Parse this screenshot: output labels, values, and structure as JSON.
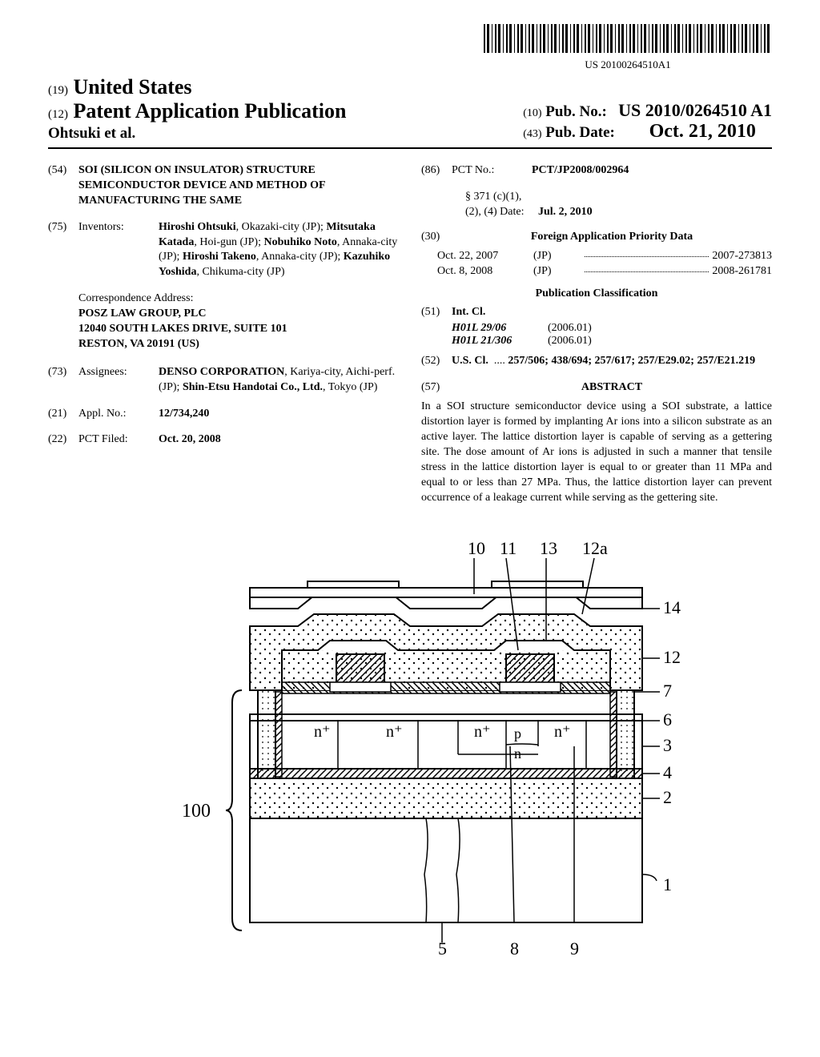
{
  "barcode_number": "US 20100264510A1",
  "header": {
    "country_code": "(19)",
    "country": "United States",
    "pub_type_code": "(12)",
    "pub_type": "Patent Application Publication",
    "authors": "Ohtsuki et al.",
    "pubno_code": "(10)",
    "pubno_label": "Pub. No.:",
    "pubno": "US 2010/0264510 A1",
    "pubdate_code": "(43)",
    "pubdate_label": "Pub. Date:",
    "pubdate": "Oct. 21, 2010"
  },
  "left": {
    "title_code": "(54)",
    "title": "SOI (SILICON ON INSULATOR) STRUCTURE SEMICONDUCTOR DEVICE AND METHOD OF MANUFACTURING THE SAME",
    "inventors_code": "(75)",
    "inventors_label": "Inventors:",
    "inventors_html": "<b>Hiroshi Ohtsuki</b>, Okazaki-city (JP); <b>Mitsutaka Katada</b>, Hoi-gun (JP); <b>Nobuhiko Noto</b>, Annaka-city (JP); <b>Hiroshi Takeno</b>, Annaka-city (JP); <b>Kazuhiko Yoshida</b>, Chikuma-city (JP)",
    "corr_label": "Correspondence Address:",
    "corr_lines": [
      "POSZ LAW GROUP, PLC",
      "12040 SOUTH LAKES DRIVE, SUITE 101",
      "RESTON, VA 20191 (US)"
    ],
    "assignees_code": "(73)",
    "assignees_label": "Assignees:",
    "assignees_html": "<b>DENSO CORPORATION</b>, Kariya-city, Aichi-perf. (JP); <b>Shin-Etsu Handotai Co., Ltd.</b>, Tokyo (JP)",
    "applno_code": "(21)",
    "applno_label": "Appl. No.:",
    "applno": "12/734,240",
    "pctfiled_code": "(22)",
    "pctfiled_label": "PCT Filed:",
    "pctfiled": "Oct. 20, 2008"
  },
  "right": {
    "pctno_code": "(86)",
    "pctno_label": "PCT No.:",
    "pctno": "PCT/JP2008/002964",
    "s371_label": "§ 371 (c)(1),",
    "s371_line2": "(2), (4) Date:",
    "s371_date": "Jul. 2, 2010",
    "foreign_code": "(30)",
    "foreign_title": "Foreign Application Priority Data",
    "priority": [
      {
        "date": "Oct. 22, 2007",
        "cc": "(JP)",
        "num": "2007-273813"
      },
      {
        "date": "Oct. 8, 2008",
        "cc": "(JP)",
        "num": "2008-261781"
      }
    ],
    "pubclass_title": "Publication Classification",
    "intcl_code": "(51)",
    "intcl_label": "Int. Cl.",
    "intcl": [
      {
        "sym": "H01L 29/06",
        "ver": "(2006.01)"
      },
      {
        "sym": "H01L 21/306",
        "ver": "(2006.01)"
      }
    ],
    "uscl_code": "(52)",
    "uscl_label": "U.S. Cl.",
    "uscl": "257/506; 438/694; 257/617; 257/E29.02; 257/E21.219",
    "abstract_code": "(57)",
    "abstract_title": "ABSTRACT",
    "abstract": "In a SOI structure semiconductor device using a SOI substrate, a lattice distortion layer is formed by implanting Ar ions into a silicon substrate as an active layer. The lattice distortion layer is capable of serving as a gettering site. The dose amount of Ar ions is adjusted in such a manner that tensile stress in the lattice distortion layer is equal to or greater than 11 MPa and equal to or less than 27 MPa. Thus, the lattice distortion layer can prevent occurrence of a leakage current while serving as the gettering site."
  },
  "figure": {
    "ref_100": "100",
    "top_labels": [
      "10",
      "11",
      "13",
      "12a"
    ],
    "right_labels": [
      "14",
      "12",
      "7",
      "6",
      "3",
      "4",
      "2",
      "1"
    ],
    "bottom_labels": [
      "5",
      "8",
      "9"
    ],
    "region_labels": [
      "n⁺",
      "n⁺",
      "n⁺",
      "n⁺",
      "p",
      "n"
    ],
    "colors": {
      "stroke": "#000000",
      "fill": "#ffffff",
      "hatch": "#000000"
    },
    "stroke_width": 2
  }
}
